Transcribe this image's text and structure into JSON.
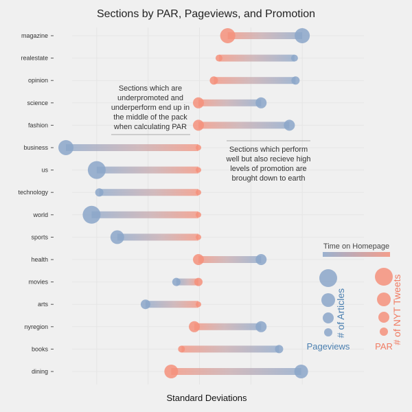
{
  "chart_data": {
    "type": "dumbbell",
    "title": "Sections by PAR, Pageviews, and Promotion",
    "xlabel": "Standard Deviations",
    "x_range": [
      -2.6,
      2.6
    ],
    "colors": {
      "pageviews": "#8ba6c9",
      "par": "#f4907b",
      "mid": "#c7a9ad"
    },
    "categories": [
      "magazine",
      "realestate",
      "opinion",
      "science",
      "fashion",
      "business",
      "us",
      "technology",
      "world",
      "sports",
      "health",
      "movies",
      "arts",
      "nyregion",
      "books",
      "dining"
    ],
    "par": [
      0.55,
      0.38,
      0.28,
      -0.02,
      -0.02,
      -0.02,
      -0.02,
      -0.02,
      -0.02,
      -0.02,
      -0.02,
      -0.02,
      -0.02,
      -0.1,
      -0.35,
      -0.55
    ],
    "pageviews": [
      2.0,
      1.85,
      1.87,
      1.2,
      1.75,
      -2.6,
      -2.0,
      -1.95,
      -2.1,
      -1.6,
      1.2,
      -0.45,
      -1.05,
      1.2,
      1.55,
      1.98
    ],
    "article_size": [
      11,
      5,
      6,
      8,
      8,
      11,
      13,
      6,
      13,
      10,
      8,
      6,
      7,
      8,
      6,
      10
    ],
    "par_size": [
      11,
      5,
      6,
      8,
      8,
      4,
      4,
      4,
      4,
      4,
      8,
      6,
      4,
      8,
      5,
      10
    ],
    "annotations": [
      {
        "lines": [
          "Sections which are",
          "underpromoted and",
          "underperform end up in",
          "the middle of the pack",
          "when calculating PAR"
        ]
      },
      {
        "lines": [
          "Sections which perform",
          "well but also recieve high",
          "levels of promotion are",
          "brought down to earth"
        ]
      }
    ],
    "legend": {
      "gradient_label": "Time on Homepage",
      "pageviews_label": "Pageviews",
      "articles_label": "# of Articles",
      "par_label": "PAR",
      "tweets_label": "# of NYT Tweets"
    }
  }
}
